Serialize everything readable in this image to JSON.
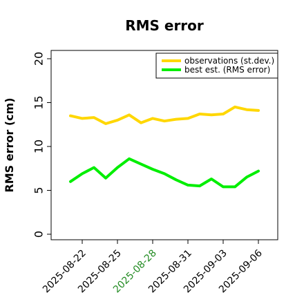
{
  "chart_data": {
    "type": "line",
    "title": "RMS error",
    "xlabel": "",
    "ylabel": "RMS error (cm)",
    "ylim": [
      0,
      21
    ],
    "yticks": [
      0,
      5,
      10,
      15,
      20
    ],
    "grid": false,
    "legend_position": "top-right",
    "x": [
      "2025-08-21",
      "2025-08-22",
      "2025-08-23",
      "2025-08-24",
      "2025-08-25",
      "2025-08-26",
      "2025-08-27",
      "2025-08-28",
      "2025-08-29",
      "2025-08-30",
      "2025-08-31",
      "2025-09-01",
      "2025-09-02",
      "2025-09-03",
      "2025-09-04",
      "2025-09-05",
      "2025-09-06"
    ],
    "xticks": [
      {
        "label": "2025-08-22",
        "color": "#000000"
      },
      {
        "label": "2025-08-25",
        "color": "#000000"
      },
      {
        "label": "2025-08-28",
        "color": "#228B22"
      },
      {
        "label": "2025-08-31",
        "color": "#000000"
      },
      {
        "label": "2025-09-03",
        "color": "#000000"
      },
      {
        "label": "2025-09-06",
        "color": "#000000"
      }
    ],
    "series": [
      {
        "name": "observations (st.dev.)",
        "color": "#FFD700",
        "values": [
          13.5,
          13.2,
          13.3,
          12.6,
          13.0,
          13.6,
          12.7,
          13.2,
          12.9,
          13.1,
          13.2,
          13.7,
          13.6,
          13.7,
          14.5,
          14.2,
          14.1
        ]
      },
      {
        "name": "best est. (RMS error)",
        "color": "#00EE00",
        "values": [
          6.0,
          6.9,
          7.6,
          6.4,
          7.6,
          8.6,
          8.0,
          7.4,
          6.9,
          6.2,
          5.6,
          5.5,
          6.3,
          5.4,
          5.4,
          6.5,
          7.2
        ]
      }
    ]
  }
}
